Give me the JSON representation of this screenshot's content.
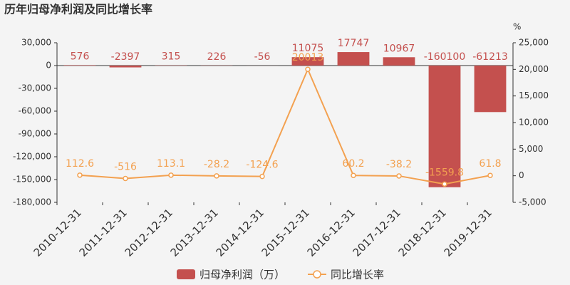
{
  "chart_data": {
    "type": "bar",
    "title": "历年归母净利润及同比增长率",
    "y2label": "%",
    "categories": [
      "2010-12-31",
      "2011-12-31",
      "2012-12-31",
      "2013-12-31",
      "2014-12-31",
      "2015-12-31",
      "2016-12-31",
      "2017-12-31",
      "2018-12-31",
      "2019-12-31"
    ],
    "series": [
      {
        "name": "归母净利润（万）",
        "type": "bar",
        "color": "#c4504e",
        "values": [
          576,
          -2397,
          315,
          226,
          -56,
          11075,
          17747,
          10967,
          -160100,
          -61213
        ]
      },
      {
        "name": "同比增长率",
        "type": "line",
        "axis": "y2",
        "color": "#f3a150",
        "values": [
          112.6,
          -516,
          113.1,
          -28.2,
          -124.6,
          20013,
          60.2,
          -38.2,
          -1559.8,
          61.8
        ]
      }
    ],
    "ylim": [
      -180000,
      30000
    ],
    "yticks": [
      {
        "value": -180000,
        "label": "-180,000"
      },
      {
        "value": -150000,
        "label": "-150,000"
      },
      {
        "value": -120000,
        "label": "-120,000"
      },
      {
        "value": -90000,
        "label": "-90,000"
      },
      {
        "value": -60000,
        "label": "-60,000"
      },
      {
        "value": -30000,
        "label": "-30,000"
      },
      0,
      {
        "value": 30000,
        "label": "30,000"
      }
    ],
    "y2lim": [
      -5000,
      25000
    ],
    "y2ticks": [
      {
        "value": -5000,
        "label": "-5,000"
      },
      0,
      {
        "value": 5000,
        "label": "5,000"
      },
      {
        "value": 10000,
        "label": "10,000"
      },
      {
        "value": 15000,
        "label": "15,000"
      },
      {
        "value": 20000,
        "label": "20,000"
      },
      {
        "value": 25000,
        "label": "25,000"
      }
    ]
  }
}
